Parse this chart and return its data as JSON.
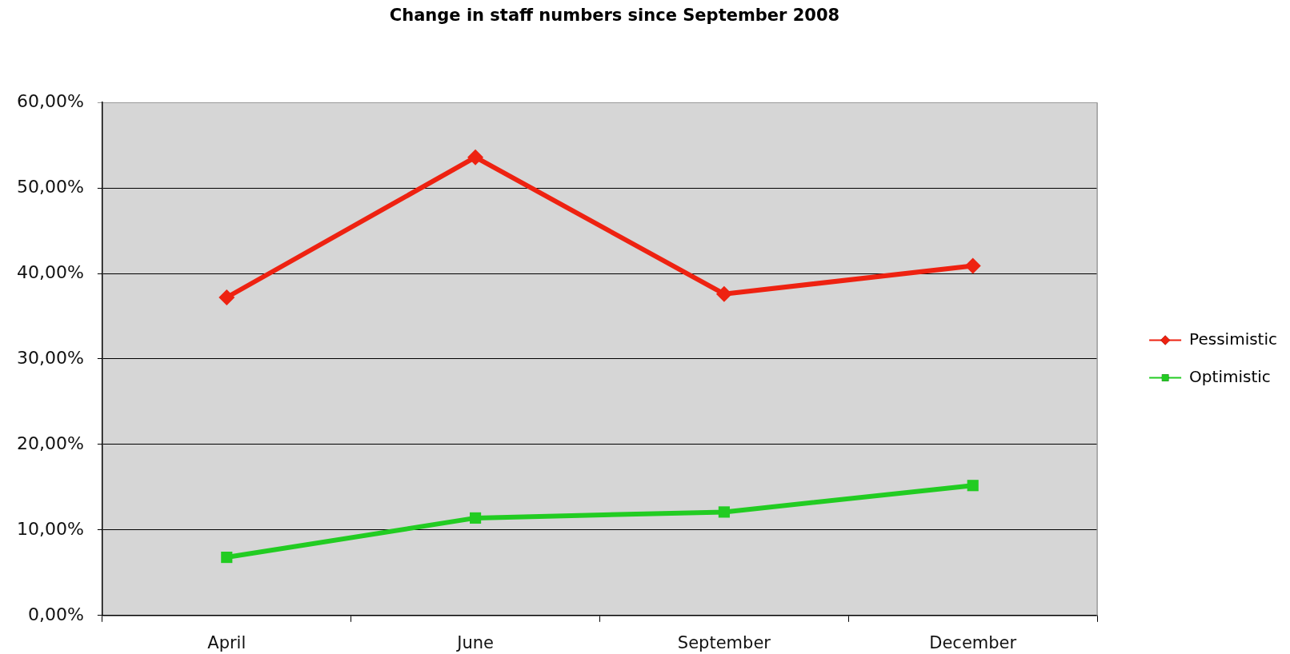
{
  "chart_data": {
    "type": "line",
    "title": "Change in staff numbers since September 2008",
    "categories": [
      "April",
      "June",
      "September",
      "December"
    ],
    "series": [
      {
        "name": "Pessimistic",
        "color": "#ee2211",
        "marker": "diamond",
        "values": [
          37.2,
          53.6,
          37.6,
          40.9
        ]
      },
      {
        "name": "Optimistic",
        "color": "#22cc22",
        "marker": "square",
        "values": [
          6.8,
          11.4,
          12.1,
          15.2
        ]
      }
    ],
    "ylim": [
      0,
      60
    ],
    "yticks": [
      {
        "value": 0,
        "label": "0,00%"
      },
      {
        "value": 10,
        "label": "10,00%"
      },
      {
        "value": 20,
        "label": "20,00%"
      },
      {
        "value": 30,
        "label": "30,00%"
      },
      {
        "value": 40,
        "label": "40,00%"
      },
      {
        "value": 50,
        "label": "50,00%"
      },
      {
        "value": 60,
        "label": "60,00%"
      }
    ],
    "grid": "y",
    "legend": "right",
    "line_style": "solid"
  }
}
